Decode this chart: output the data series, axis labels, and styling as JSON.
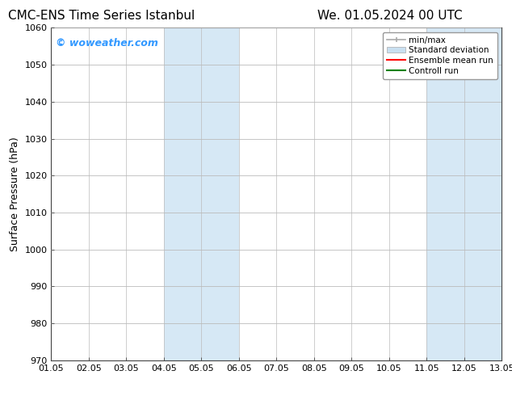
{
  "title_left": "CMC-ENS Time Series Istanbul",
  "title_right": "We. 01.05.2024 00 UTC",
  "ylabel": "Surface Pressure (hPa)",
  "xlabel": "",
  "ylim": [
    970,
    1060
  ],
  "yticks": [
    970,
    980,
    990,
    1000,
    1010,
    1020,
    1030,
    1040,
    1050,
    1060
  ],
  "xtick_labels": [
    "01.05",
    "02.05",
    "03.05",
    "04.05",
    "05.05",
    "06.05",
    "07.05",
    "08.05",
    "09.05",
    "10.05",
    "11.05",
    "12.05",
    "13.05"
  ],
  "xtick_positions": [
    0,
    1,
    2,
    3,
    4,
    5,
    6,
    7,
    8,
    9,
    10,
    11,
    12
  ],
  "shaded_bands": [
    {
      "x_start": 3,
      "x_end": 5,
      "color": "#d6e8f5"
    },
    {
      "x_start": 10,
      "x_end": 12,
      "color": "#d6e8f5"
    }
  ],
  "background_color": "#ffffff",
  "plot_bg_color": "#ffffff",
  "grid_color": "#bbbbbb",
  "watermark_text": "© woweather.com",
  "watermark_color": "#3399ff",
  "legend_items": [
    {
      "label": "min/max",
      "color": "#aaaaaa",
      "style": "errorbar"
    },
    {
      "label": "Standard deviation",
      "color": "#c8dff0",
      "style": "fill"
    },
    {
      "label": "Ensemble mean run",
      "color": "#ff0000",
      "style": "line"
    },
    {
      "label": "Controll run",
      "color": "#008000",
      "style": "line"
    }
  ],
  "title_fontsize": 11,
  "watermark_fontsize": 9,
  "axis_label_fontsize": 9,
  "tick_fontsize": 8,
  "legend_fontsize": 7.5,
  "border_color": "#999999",
  "spine_color": "#444444"
}
